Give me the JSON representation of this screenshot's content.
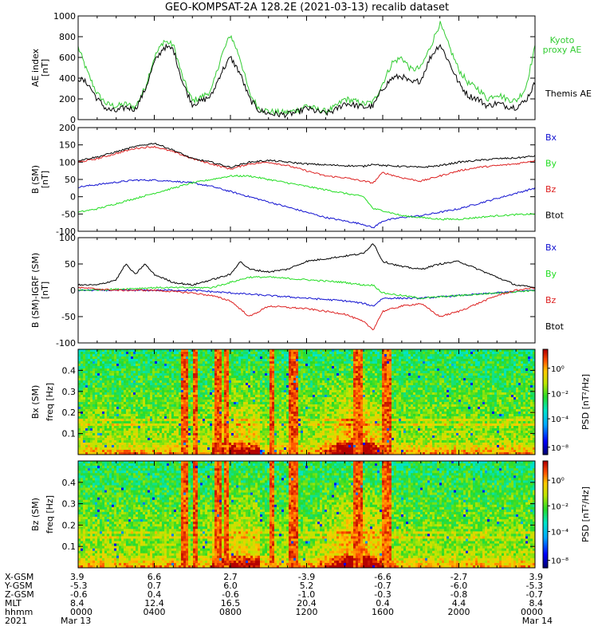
{
  "title": "GEO-KOMPSAT-2A 128.2E (2021-03-13) recalib dataset",
  "colors": {
    "black": "#000000",
    "green": "#22dd22",
    "red": "#dd2020",
    "blue": "#1010d0",
    "kyoto": "#33cc33"
  },
  "chart_data": [
    {
      "type": "line",
      "ylabel": "AE index [nT]",
      "ylim": [
        0,
        1000
      ],
      "yticks": [
        "0",
        "200",
        "400",
        "600",
        "800",
        "1000"
      ],
      "xlim_hours": [
        0,
        24
      ],
      "series": [
        {
          "name": "Kyoto proxy AE",
          "name_lines": [
            "Kyoto",
            "proxy AE"
          ],
          "color": "#33cc33",
          "x": [
            0,
            0.5,
            1,
            1.5,
            2,
            2.5,
            3,
            3.5,
            4,
            4.5,
            5,
            5.5,
            6,
            6.5,
            7,
            7.5,
            8,
            8.5,
            9,
            9.5,
            10,
            10.5,
            11,
            11.5,
            12,
            12.5,
            13,
            13.5,
            14,
            14.5,
            15,
            15.5,
            16,
            16.5,
            17,
            17.5,
            18,
            18.5,
            19,
            19.5,
            20,
            20.5,
            21,
            21.5,
            22,
            22.5,
            23,
            23.5,
            24
          ],
          "values": [
            700,
            450,
            250,
            150,
            130,
            150,
            120,
            300,
            600,
            760,
            720,
            400,
            180,
            220,
            280,
            600,
            820,
            600,
            250,
            110,
            80,
            70,
            70,
            90,
            140,
            100,
            80,
            120,
            200,
            180,
            150,
            170,
            350,
            550,
            600,
            480,
            500,
            700,
            930,
            700,
            480,
            350,
            300,
            200,
            250,
            200,
            180,
            300,
            700
          ]
        },
        {
          "name": "Themis AE",
          "name_lines": [
            "Themis AE"
          ],
          "color": "#000000",
          "x": [
            0,
            0.5,
            1,
            1.5,
            2,
            2.5,
            3,
            3.5,
            4,
            4.5,
            5,
            5.5,
            6,
            6.5,
            7,
            7.5,
            8,
            8.5,
            9,
            9.5,
            10,
            10.5,
            11,
            11.5,
            12,
            12.5,
            13,
            13.5,
            14,
            14.5,
            15,
            15.5,
            16,
            16.5,
            17,
            17.5,
            18,
            18.5,
            19,
            19.5,
            20,
            20.5,
            21,
            21.5,
            22,
            22.5,
            23,
            23.5,
            24
          ],
          "values": [
            400,
            350,
            200,
            100,
            80,
            120,
            100,
            280,
            550,
            700,
            680,
            350,
            150,
            180,
            230,
            450,
            600,
            450,
            200,
            90,
            60,
            50,
            50,
            70,
            110,
            80,
            60,
            90,
            160,
            140,
            120,
            130,
            300,
            400,
            420,
            350,
            380,
            600,
            730,
            550,
            350,
            230,
            200,
            130,
            160,
            130,
            120,
            180,
            350
          ]
        }
      ]
    },
    {
      "type": "line",
      "ylabel": "B (SM) [nT]",
      "ylim": [
        -100,
        200
      ],
      "yticks": [
        "-100",
        "-50",
        "0",
        "50",
        "100",
        "150",
        "200"
      ],
      "xlim_hours": [
        0,
        24
      ],
      "series": [
        {
          "name": "Bx",
          "color": "#1010d0",
          "x": [
            0,
            1,
            2,
            3,
            4,
            5,
            6,
            7,
            8,
            9,
            10,
            11,
            12,
            13,
            14,
            15,
            15.5,
            16,
            17,
            18,
            19,
            20,
            21,
            22,
            23,
            24
          ],
          "values": [
            28,
            35,
            42,
            48,
            48,
            45,
            40,
            30,
            15,
            0,
            -15,
            -30,
            -45,
            -60,
            -70,
            -80,
            -90,
            -70,
            -60,
            -55,
            -45,
            -35,
            -20,
            -5,
            10,
            25
          ]
        },
        {
          "name": "By",
          "color": "#22dd22",
          "x": [
            0,
            1,
            2,
            3,
            4,
            5,
            6,
            7,
            8,
            9,
            10,
            11,
            12,
            13,
            14,
            15,
            15.5,
            16,
            17,
            18,
            19,
            20,
            21,
            22,
            23,
            24
          ],
          "values": [
            -45,
            -35,
            -20,
            -5,
            10,
            25,
            40,
            50,
            60,
            60,
            50,
            40,
            30,
            20,
            10,
            0,
            -35,
            -40,
            -55,
            -60,
            -65,
            -65,
            -60,
            -55,
            -52,
            -50
          ]
        },
        {
          "name": "Bz",
          "color": "#dd2020",
          "x": [
            0,
            1,
            2,
            3,
            4,
            5,
            6,
            7,
            8,
            9,
            10,
            11,
            12,
            13,
            14,
            15,
            15.5,
            16,
            17,
            18,
            19,
            20,
            21,
            22,
            23,
            24
          ],
          "values": [
            100,
            110,
            125,
            140,
            145,
            130,
            110,
            95,
            80,
            95,
            100,
            90,
            75,
            60,
            55,
            45,
            40,
            70,
            55,
            45,
            60,
            75,
            85,
            90,
            95,
            105
          ]
        },
        {
          "name": "Btot",
          "color": "#000000",
          "x": [
            0,
            1,
            2,
            3,
            4,
            5,
            6,
            7,
            8,
            9,
            10,
            11,
            12,
            13,
            14,
            15,
            15.5,
            16,
            17,
            18,
            19,
            20,
            21,
            22,
            23,
            24
          ],
          "values": [
            105,
            115,
            130,
            145,
            155,
            135,
            110,
            100,
            85,
            100,
            105,
            100,
            95,
            92,
            90,
            88,
            95,
            90,
            88,
            85,
            90,
            100,
            105,
            110,
            112,
            118
          ]
        }
      ]
    },
    {
      "type": "line",
      "ylabel": "B (SM)-IGRF (SM) [nT]",
      "ylim": [
        -100,
        100
      ],
      "yticks": [
        "-100",
        "-50",
        "0",
        "50",
        "100"
      ],
      "xlim_hours": [
        0,
        24
      ],
      "series": [
        {
          "name": "Bx",
          "color": "#1010d0",
          "x": [
            0,
            2,
            4,
            6,
            8,
            10,
            12,
            14,
            15,
            15.5,
            16,
            18,
            20,
            22,
            24
          ],
          "values": [
            0,
            0,
            0,
            0,
            -5,
            -10,
            -15,
            -20,
            -25,
            -30,
            -15,
            -15,
            -10,
            -5,
            0
          ]
        },
        {
          "name": "By",
          "color": "#22dd22",
          "x": [
            0,
            2,
            4,
            6,
            7,
            8,
            9,
            10,
            12,
            14,
            15,
            15.5,
            16,
            18,
            20,
            22,
            24
          ],
          "values": [
            0,
            2,
            5,
            5,
            5,
            15,
            25,
            25,
            20,
            15,
            10,
            10,
            -5,
            -15,
            -10,
            -5,
            0
          ]
        },
        {
          "name": "Bz",
          "color": "#dd2020",
          "x": [
            0,
            2,
            4,
            6,
            7,
            8,
            9,
            10,
            12,
            14,
            15,
            15.5,
            16,
            17,
            18,
            19,
            20,
            21,
            22,
            23,
            24
          ],
          "values": [
            5,
            0,
            0,
            -5,
            -10,
            -20,
            -50,
            -30,
            -35,
            -45,
            -60,
            -75,
            -40,
            -30,
            -25,
            -50,
            -40,
            -25,
            -10,
            0,
            5
          ]
        },
        {
          "name": "Btot",
          "color": "#000000",
          "x": [
            0,
            1,
            2,
            2.5,
            3,
            3.5,
            4,
            5,
            6,
            7,
            8,
            8.5,
            9,
            10,
            11,
            12,
            13,
            14,
            15,
            15.5,
            16,
            17,
            18,
            19,
            20,
            21,
            22,
            23,
            24
          ],
          "values": [
            10,
            10,
            20,
            50,
            30,
            50,
            30,
            15,
            10,
            20,
            30,
            55,
            40,
            35,
            40,
            55,
            60,
            65,
            70,
            90,
            55,
            45,
            40,
            50,
            55,
            40,
            25,
            10,
            5
          ]
        }
      ]
    },
    {
      "type": "heatmap",
      "ylabel": "Bx (SM) freq [Hz]",
      "yticks": [
        "0.1",
        "0.2",
        "0.3",
        "0.4"
      ],
      "ylim": [
        0,
        0.5
      ],
      "colorbar_label": "PSD [nT²/Hz]",
      "colorbar_ticks": [
        "10⁰",
        "10⁻²",
        "10⁻⁴",
        "10⁻⁸"
      ]
    },
    {
      "type": "heatmap",
      "ylabel": "Bz (SM) freq [Hz]",
      "yticks": [
        "0.1",
        "0.2",
        "0.3",
        "0.4"
      ],
      "ylim": [
        0,
        0.5
      ],
      "colorbar_label": "PSD [nT²/Hz]",
      "colorbar_ticks": [
        "10⁰",
        "10⁻²",
        "10⁻⁴",
        "10⁻⁸"
      ]
    }
  ],
  "ephemeris": {
    "row_labels": [
      "X-GSM",
      "Y-GSM",
      "Z-GSM",
      "MLT",
      "hhmm",
      "2021"
    ],
    "columns": [
      {
        "values": [
          "3.9",
          "-5.3",
          "-0.6",
          "8.4",
          "0000",
          "Mar 13"
        ]
      },
      {
        "values": [
          "6.6",
          "0.7",
          "0.4",
          "12.4",
          "0400",
          ""
        ]
      },
      {
        "values": [
          "2.7",
          "6.0",
          "-0.6",
          "16.5",
          "0800",
          ""
        ]
      },
      {
        "values": [
          "-3.9",
          "5.2",
          "-1.0",
          "20.4",
          "1200",
          ""
        ]
      },
      {
        "values": [
          "-6.6",
          "-0.7",
          "-0.3",
          "0.4",
          "1600",
          ""
        ]
      },
      {
        "values": [
          "-2.7",
          "-6.0",
          "-0.8",
          "4.4",
          "2000",
          ""
        ]
      },
      {
        "values": [
          "3.9",
          "-5.3",
          "-0.7",
          "8.4",
          "0000",
          "Mar 14"
        ]
      }
    ]
  }
}
